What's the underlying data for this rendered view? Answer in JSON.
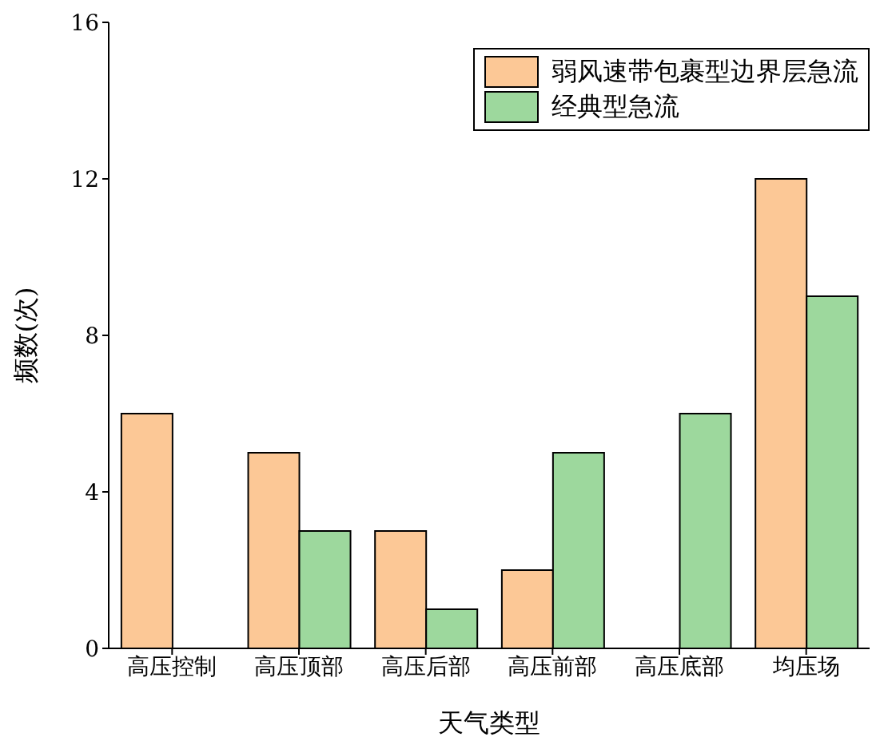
{
  "chart_data": {
    "type": "bar",
    "xlabel": "天气类型",
    "ylabel": "频数(次)",
    "categories": [
      "高压控制",
      "高压顶部",
      "高压后部",
      "高压前部",
      "高压底部",
      "均压场"
    ],
    "series": [
      {
        "name": "弱风速带包裹型边界层急流",
        "color": "#fcc896",
        "values": [
          6,
          5,
          3,
          2,
          0,
          12
        ]
      },
      {
        "name": "经典型急流",
        "color": "#9dd89d",
        "values": [
          0,
          3,
          1,
          5,
          6,
          9
        ]
      }
    ],
    "ylim": [
      0,
      16
    ],
    "yticks": [
      0,
      4,
      8,
      12,
      16
    ],
    "grid": false,
    "legend": "top right"
  }
}
